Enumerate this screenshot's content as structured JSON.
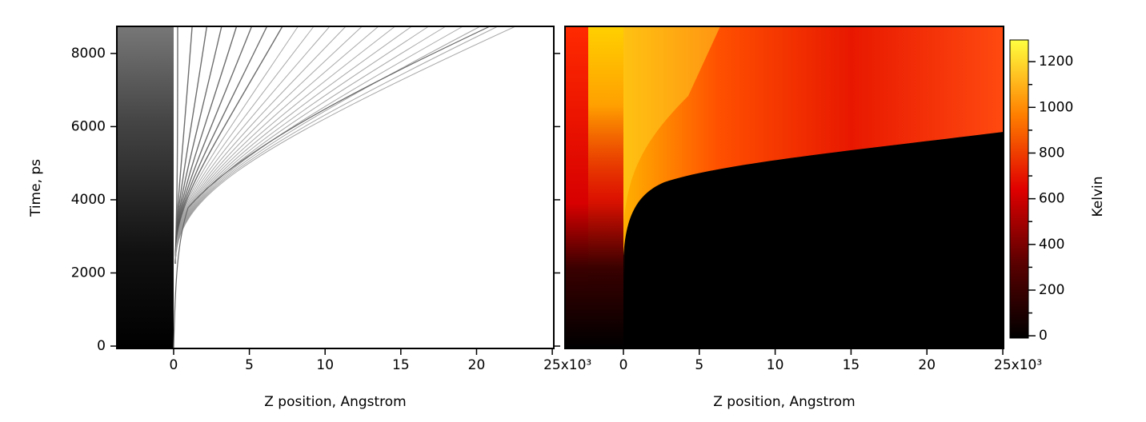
{
  "chart_data": [
    {
      "type": "heatmap",
      "ylabel": "Time, ps",
      "xlabel": "Z position, Angstrom",
      "xlim": [
        -3.75,
        25.1
      ],
      "ylim": [
        -65,
        8740
      ],
      "xticks": [
        0,
        5,
        10,
        15,
        20,
        {
          "value": 25,
          "label": "25x10³"
        }
      ],
      "yticks": [
        0,
        2000,
        4000,
        6000,
        8000
      ],
      "colormap": "gray"
    },
    {
      "type": "heatmap",
      "xlabel": "Z position, Angstrom",
      "xlim": [
        -3.85,
        25.05
      ],
      "ylim": [
        -65,
        8740
      ],
      "xticks": [
        0,
        5,
        10,
        15,
        20,
        {
          "value": 25,
          "label": "25x10³"
        }
      ],
      "colormap": "hot",
      "colorbar": {
        "label": "Kelvin",
        "zlim": [
          -10,
          1295
        ],
        "ticks": [
          0,
          200,
          400,
          600,
          800,
          1000,
          1200
        ]
      }
    }
  ]
}
